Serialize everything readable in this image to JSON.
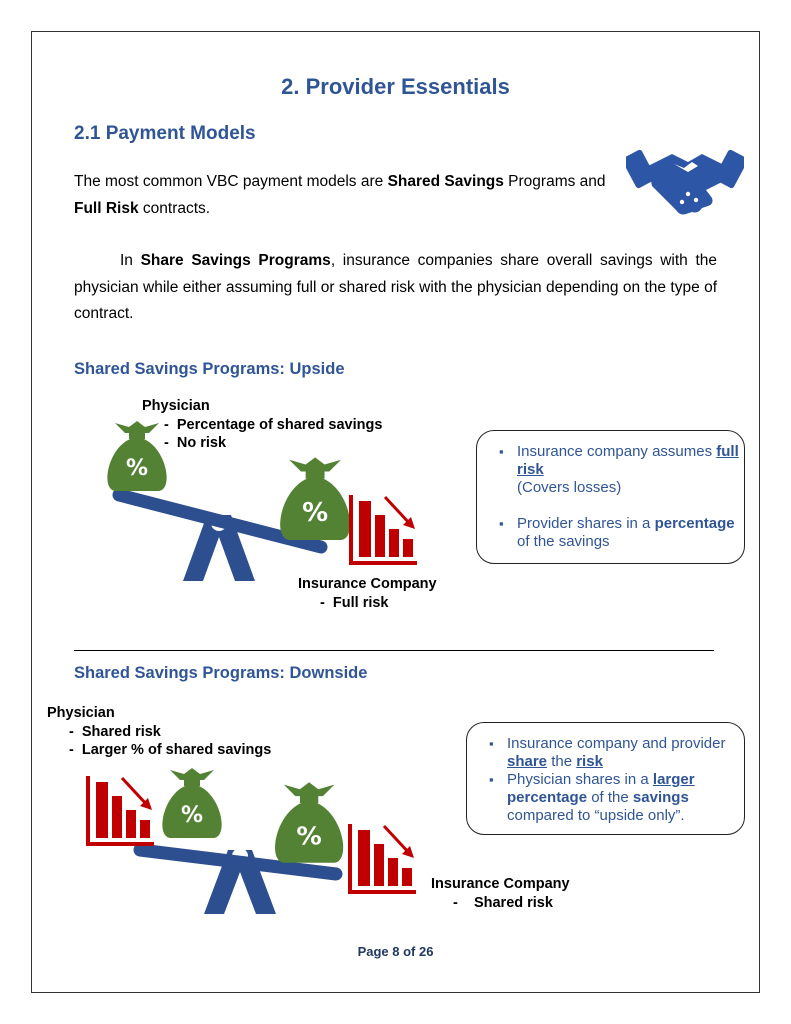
{
  "heading": {
    "number": "2.",
    "title": "Provider Essentials"
  },
  "section": {
    "title": "2.1 Payment Models"
  },
  "intro": {
    "t1": "The most common VBC payment models are ",
    "b1": "Shared Savings",
    "t2": " Programs and ",
    "b2": "Full Risk",
    "t3": " contracts."
  },
  "para": {
    "t1": "In ",
    "b1": "Share Savings Programs",
    "t2": ", insurance companies share overall savings with the physician while either assuming full or shared risk with the physician depending on the type of contract."
  },
  "upside": {
    "title": "Shared Savings Programs: Upside",
    "physician_title": "Physician",
    "physician_items": [
      "Percentage of shared savings",
      "No risk"
    ],
    "insurer_title": "Insurance Company",
    "insurer_items": [
      "Full risk"
    ],
    "box": {
      "item1": {
        "t1": "Insurance company assumes ",
        "u1": "full",
        "sp": " ",
        "u2": "risk",
        "t2": "(Covers losses)"
      },
      "item2": {
        "t1": "Provider shares in a ",
        "b1": "percentage",
        "t2": " of the savings"
      }
    }
  },
  "downside": {
    "title": "Shared Savings Programs: Downside",
    "physician_title": "Physician",
    "physician_items": [
      "Shared risk",
      "Larger % of shared savings"
    ],
    "insurer_title": "Insurance Company",
    "insurer_items": [
      "Shared risk"
    ],
    "box": {
      "item1": {
        "t1": "Insurance company and provider ",
        "u1": "share",
        "t2": " the ",
        "u2": "risk"
      },
      "item2": {
        "t1": "Physician shares in a ",
        "u1": "larger",
        "sp": " ",
        "b1": "percentage",
        "t2": " of the ",
        "b2": "savings",
        "t3": " compared to “upside only”."
      }
    }
  },
  "footer": {
    "page": "Page 8 of 26"
  },
  "colors": {
    "blue": "#2f5597",
    "green": "#548235",
    "red": "#c00000",
    "navy": "#2e4f8f"
  },
  "icons": [
    "handshake-icon",
    "money-bag-icon",
    "declining-chart-icon",
    "seesaw-icon"
  ]
}
